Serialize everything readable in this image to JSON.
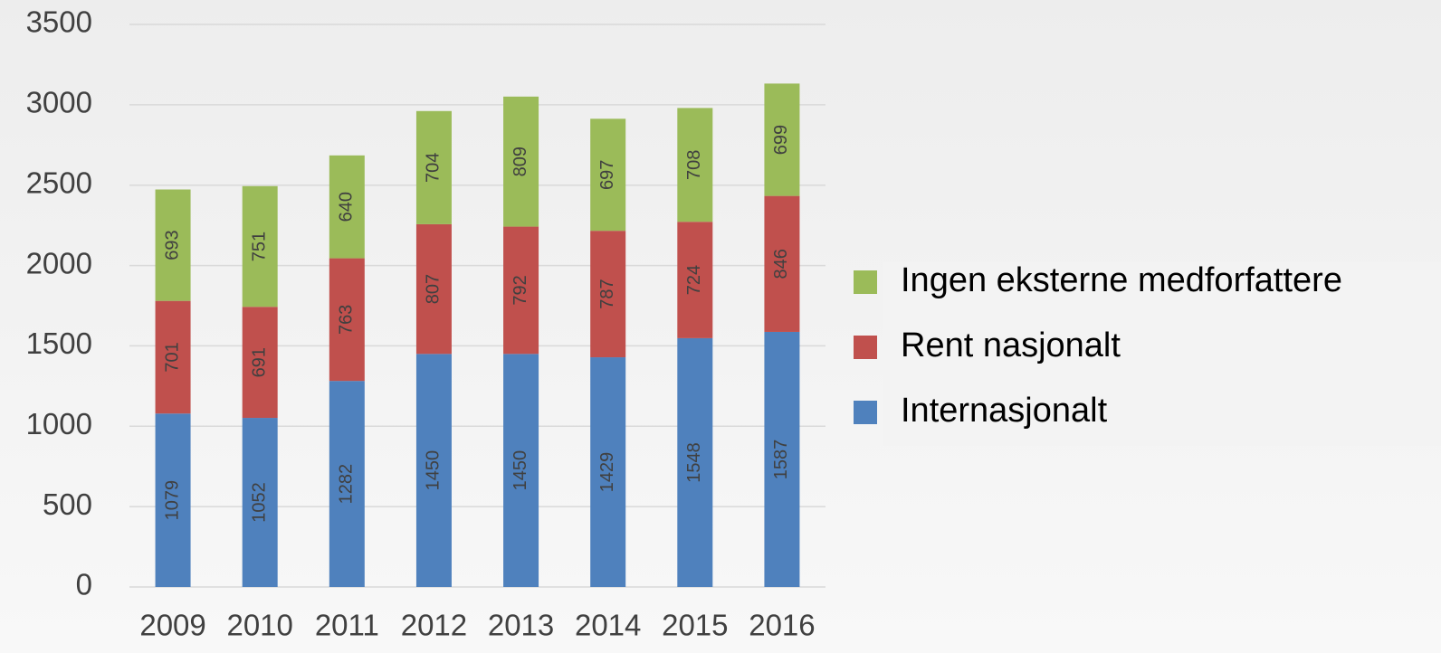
{
  "chart_data": {
    "type": "stacked_bar",
    "categories": [
      "2009",
      "2010",
      "2011",
      "2012",
      "2013",
      "2014",
      "2015",
      "2016"
    ],
    "series": [
      {
        "name": "Internasjonalt",
        "color": "#4f81bd",
        "values": [
          1079,
          1052,
          1282,
          1450,
          1450,
          1429,
          1548,
          1587
        ]
      },
      {
        "name": "Rent nasjonalt",
        "color": "#c0504d",
        "values": [
          701,
          691,
          763,
          807,
          792,
          787,
          724,
          846
        ]
      },
      {
        "name": "Ingen eksterne medforfattere",
        "color": "#9bbb59",
        "values": [
          693,
          751,
          640,
          704,
          809,
          697,
          708,
          699
        ]
      }
    ],
    "ylim": [
      0,
      3500
    ],
    "yticks": [
      0,
      500,
      1000,
      1500,
      2000,
      2500,
      3000,
      3500
    ],
    "grid": true,
    "legend": "right",
    "data_labels": true
  }
}
